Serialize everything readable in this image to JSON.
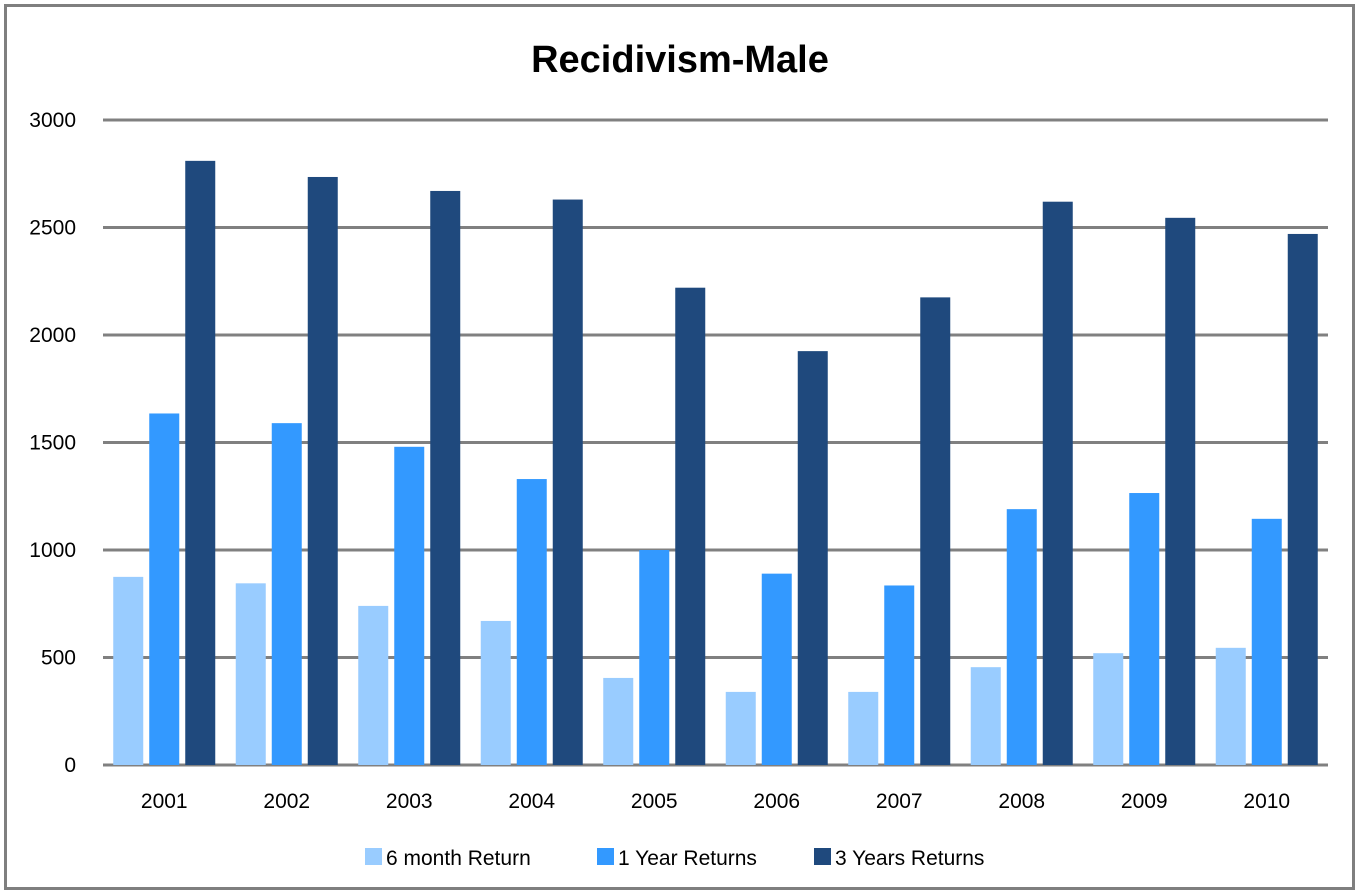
{
  "chart_data": {
    "type": "bar",
    "title": "Recidivism-Male",
    "xlabel": "",
    "ylabel": "",
    "categories": [
      "2001",
      "2002",
      "2003",
      "2004",
      "2005",
      "2006",
      "2007",
      "2008",
      "2009",
      "2010"
    ],
    "series": [
      {
        "name": "6 month Return",
        "color": "#99ccff",
        "values": [
          875,
          845,
          740,
          670,
          405,
          340,
          340,
          455,
          520,
          545
        ]
      },
      {
        "name": "1 Year Returns",
        "color": "#3399ff",
        "values": [
          1635,
          1590,
          1480,
          1330,
          1000,
          890,
          835,
          1190,
          1265,
          1145
        ]
      },
      {
        "name": "3 Years Returns",
        "color": "#1f497d",
        "values": [
          2810,
          2735,
          2670,
          2630,
          2220,
          1925,
          2175,
          2620,
          2545,
          2470
        ]
      }
    ],
    "ylim": [
      0,
      3000
    ],
    "yticks": [
      0,
      500,
      1000,
      1500,
      2000,
      2500,
      3000
    ],
    "grid": true,
    "legend_position": "bottom"
  }
}
